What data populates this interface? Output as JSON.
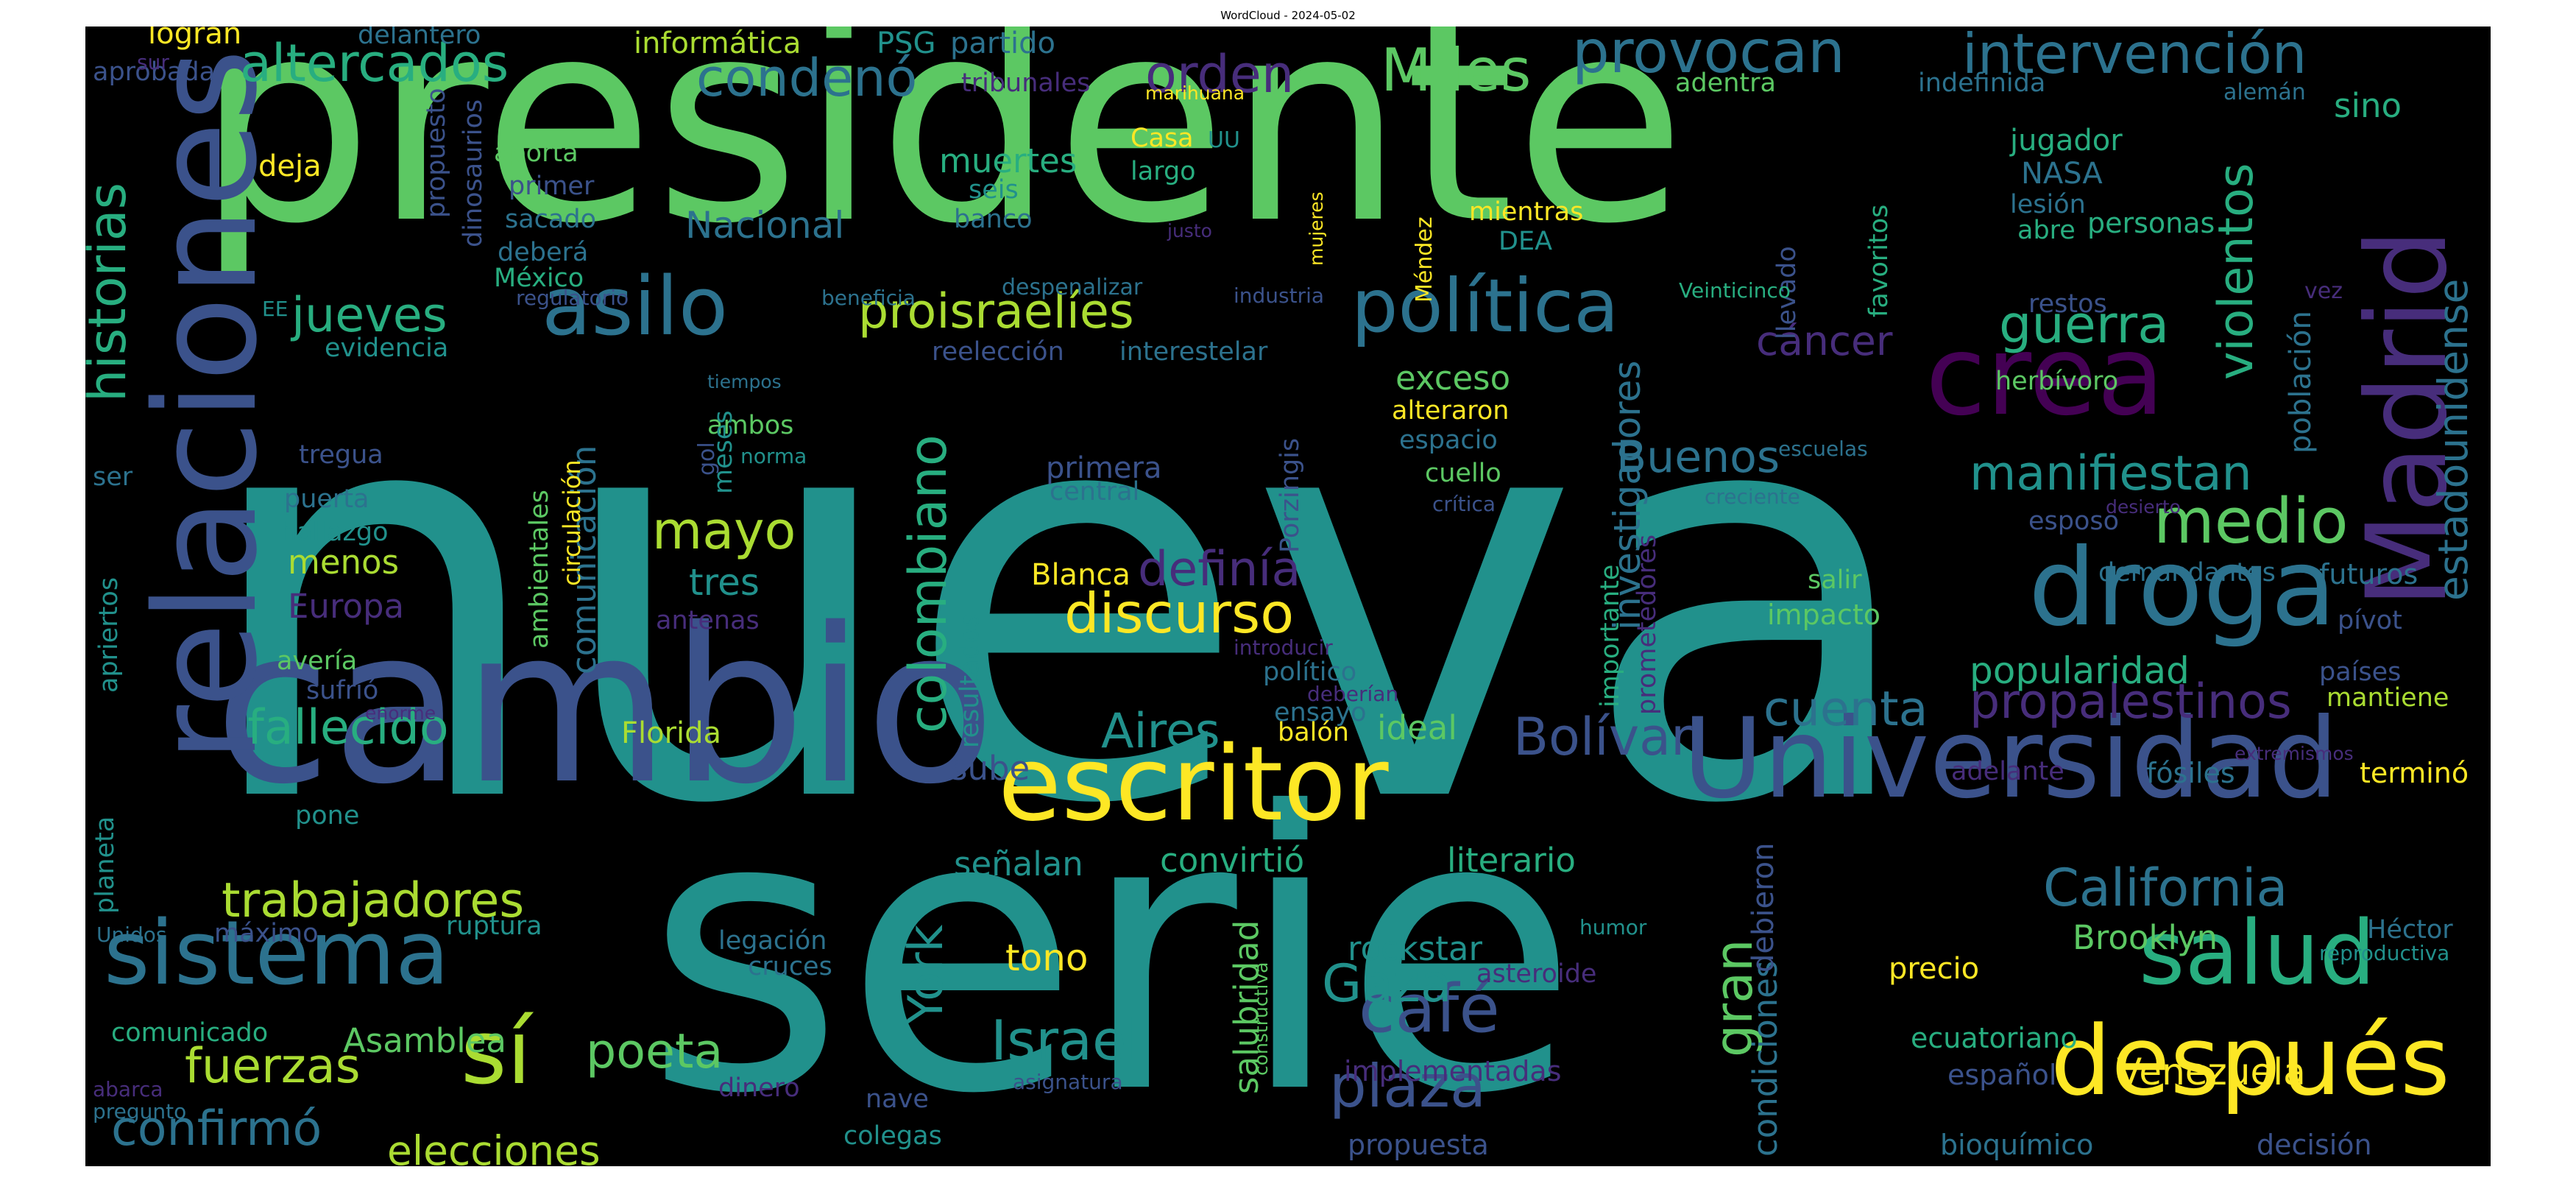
{
  "title": "WordCloud - 2024-05-02",
  "palette": {
    "background": "#000000",
    "c1": "#5cc863",
    "c2": "#21918c",
    "c3": "#3b528b",
    "c4": "#fde725",
    "c5": "#440154",
    "c6": "#2c728e",
    "c7": "#28ae80",
    "c8": "#aadc32",
    "c9": "#472d7b"
  },
  "words": [
    {
      "text": "nueva",
      "color": "#21918c"
    },
    {
      "text": "presidente",
      "color": "#5cc863"
    },
    {
      "text": "serie",
      "color": "#21918c"
    },
    {
      "text": "cambio",
      "color": "#3b528b"
    },
    {
      "text": "relaciones",
      "color": "#3b528b"
    },
    {
      "text": "Universidad",
      "color": "#3b528b"
    },
    {
      "text": "escritor",
      "color": "#fde725"
    },
    {
      "text": "Madrid",
      "color": "#472d7b"
    },
    {
      "text": "crea",
      "color": "#440154"
    },
    {
      "text": "droga",
      "color": "#2c728e"
    },
    {
      "text": "después",
      "color": "#fde725"
    },
    {
      "text": "salud",
      "color": "#28ae80"
    },
    {
      "text": "sistema",
      "color": "#2c728e"
    },
    {
      "text": "sí",
      "color": "#aadc32"
    },
    {
      "text": "asilo",
      "color": "#2c728e"
    },
    {
      "text": "política",
      "color": "#2c728e"
    },
    {
      "text": "medio",
      "color": "#5cc863"
    },
    {
      "text": "café",
      "color": "#3b528b"
    },
    {
      "text": "Israel",
      "color": "#21918c"
    },
    {
      "text": "plaza",
      "color": "#3b528b"
    },
    {
      "text": "Miles",
      "color": "#5cc863"
    },
    {
      "text": "provocan",
      "color": "#2c728e"
    },
    {
      "text": "intervención",
      "color": "#2c728e"
    },
    {
      "text": "altercados",
      "color": "#28ae80"
    },
    {
      "text": "condenó",
      "color": "#2c728e"
    },
    {
      "text": "orden",
      "color": "#472d7b"
    },
    {
      "text": "historias",
      "color": "#28ae80"
    },
    {
      "text": "jueves",
      "color": "#28ae80"
    },
    {
      "text": "proisraelíes",
      "color": "#aadc32"
    },
    {
      "text": "guerra",
      "color": "#28ae80"
    },
    {
      "text": "cáncer",
      "color": "#472d7b"
    },
    {
      "text": "violentos",
      "color": "#28ae80"
    },
    {
      "text": "estadounidense",
      "color": "#2c728e"
    },
    {
      "text": "manifiestan",
      "color": "#21918c"
    },
    {
      "text": "Buenos",
      "color": "#2c728e"
    },
    {
      "text": "colombiano",
      "color": "#28ae80"
    },
    {
      "text": "mayo",
      "color": "#aadc32"
    },
    {
      "text": "discurso",
      "color": "#fde725"
    },
    {
      "text": "definía",
      "color": "#472d7b"
    },
    {
      "text": "propalestinos",
      "color": "#472d7b"
    },
    {
      "text": "cuenta",
      "color": "#2c728e"
    },
    {
      "text": "Bolívar",
      "color": "#3b528b"
    },
    {
      "text": "fallecido",
      "color": "#28ae80"
    },
    {
      "text": "Aires",
      "color": "#21918c"
    },
    {
      "text": "trabajadores",
      "color": "#aadc32"
    },
    {
      "text": "California",
      "color": "#2c728e"
    },
    {
      "text": "fuerzas",
      "color": "#aadc32"
    },
    {
      "text": "poeta",
      "color": "#5cc863"
    },
    {
      "text": "confirmó",
      "color": "#2c728e"
    },
    {
      "text": "elecciones",
      "color": "#aadc32"
    },
    {
      "text": "Gaza",
      "color": "#21918c"
    },
    {
      "text": "York",
      "color": "#21918c"
    },
    {
      "text": "gran",
      "color": "#5cc863"
    },
    {
      "text": "Venezuela",
      "color": "#fde725"
    },
    {
      "text": "Asamblea",
      "color": "#5cc863"
    },
    {
      "text": "Nacional",
      "color": "#2c728e"
    },
    {
      "text": "muertes",
      "color": "#28ae80"
    },
    {
      "text": "tres",
      "color": "#21918c"
    },
    {
      "text": "tono",
      "color": "#fde725"
    },
    {
      "text": "popularidad",
      "color": "#28ae80"
    },
    {
      "text": "investigadores",
      "color": "#2c728e"
    },
    {
      "text": "comunicación",
      "color": "#2c728e"
    },
    {
      "text": "señalan",
      "color": "#21918c"
    },
    {
      "text": "convirtió",
      "color": "#28ae80"
    },
    {
      "text": "literario",
      "color": "#28ae80"
    },
    {
      "text": "rockstar",
      "color": "#21918c"
    },
    {
      "text": "Brooklyn",
      "color": "#5cc863"
    },
    {
      "text": "salubridad",
      "color": "#5cc863"
    },
    {
      "text": "condiciones",
      "color": "#2c728e"
    },
    {
      "text": "debieron",
      "color": "#3b528b"
    },
    {
      "text": "Europa",
      "color": "#472d7b"
    },
    {
      "text": "menos",
      "color": "#aadc32"
    },
    {
      "text": "exceso",
      "color": "#5cc863"
    },
    {
      "text": "población",
      "color": "#2c728e"
    },
    {
      "text": "informática",
      "color": "#aadc32"
    },
    {
      "text": "PSG",
      "color": "#21918c"
    },
    {
      "text": "partido",
      "color": "#2c728e"
    },
    {
      "text": "delantero",
      "color": "#2c728e"
    },
    {
      "text": "logran",
      "color": "#fde725"
    },
    {
      "text": "aprobada",
      "color": "#3b528b"
    },
    {
      "text": "tribunales",
      "color": "#472d7b"
    },
    {
      "text": "marihuana",
      "color": "#fde725"
    },
    {
      "text": "adentra",
      "color": "#5cc863"
    },
    {
      "text": "indefinida",
      "color": "#2c728e"
    },
    {
      "text": "alemán",
      "color": "#2c728e"
    },
    {
      "text": "sino",
      "color": "#28ae80"
    },
    {
      "text": "aporta",
      "color": "#5cc863"
    },
    {
      "text": "primer",
      "color": "#3b528b"
    },
    {
      "text": "sacado",
      "color": "#2c728e"
    },
    {
      "text": "deberá",
      "color": "#2c728e"
    },
    {
      "text": "México",
      "color": "#28ae80"
    },
    {
      "text": "deja",
      "color": "#fde725"
    },
    {
      "text": "seis",
      "color": "#21918c"
    },
    {
      "text": "banco",
      "color": "#2c728e"
    },
    {
      "text": "largo",
      "color": "#28ae80"
    },
    {
      "text": "Casa",
      "color": "#fde725"
    },
    {
      "text": "UU",
      "color": "#21918c"
    },
    {
      "text": "jugador",
      "color": "#28ae80"
    },
    {
      "text": "NASA",
      "color": "#2c728e"
    },
    {
      "text": "lesión",
      "color": "#2c728e"
    },
    {
      "text": "abre",
      "color": "#28ae80"
    },
    {
      "text": "personas",
      "color": "#28ae80"
    },
    {
      "text": "mientras",
      "color": "#fde725"
    },
    {
      "text": "DEA",
      "color": "#21918c"
    },
    {
      "text": "favoritos",
      "color": "#28ae80"
    },
    {
      "text": "llevado",
      "color": "#3b528b"
    },
    {
      "text": "restos",
      "color": "#3b528b"
    },
    {
      "text": "vez",
      "color": "#472d7b"
    },
    {
      "text": "herbívoro",
      "color": "#5cc863"
    },
    {
      "text": "Méndez",
      "color": "#fde725"
    },
    {
      "text": "mujeres",
      "color": "#fde725"
    },
    {
      "text": "justo",
      "color": "#472d7b"
    },
    {
      "text": "despenalizar",
      "color": "#2c728e"
    },
    {
      "text": "industria",
      "color": "#3b528b"
    },
    {
      "text": "beneficia",
      "color": "#2c728e"
    },
    {
      "text": "regulatorio",
      "color": "#3b528b"
    },
    {
      "text": "EE",
      "color": "#21918c"
    },
    {
      "text": "evidencia",
      "color": "#21918c"
    },
    {
      "text": "reelección",
      "color": "#3b528b"
    },
    {
      "text": "interestelar",
      "color": "#2c728e"
    },
    {
      "text": "Veinticinco",
      "color": "#28ae80"
    },
    {
      "text": "tiempos",
      "color": "#2c728e"
    },
    {
      "text": "circulación",
      "color": "#fde725"
    },
    {
      "text": "ambos",
      "color": "#5cc863"
    },
    {
      "text": "meses",
      "color": "#21918c"
    },
    {
      "text": "gol",
      "color": "#3b528b"
    },
    {
      "text": "norma",
      "color": "#21918c"
    },
    {
      "text": "tregua",
      "color": "#3b528b"
    },
    {
      "text": "ser",
      "color": "#2c728e"
    },
    {
      "text": "puerta",
      "color": "#2c728e"
    },
    {
      "text": "hallazgo",
      "color": "#21918c"
    },
    {
      "text": "ambientales",
      "color": "#5cc863"
    },
    {
      "text": "primera",
      "color": "#3b528b"
    },
    {
      "text": "central",
      "color": "#2c728e"
    },
    {
      "text": "Porzingis",
      "color": "#3b528b"
    },
    {
      "text": "alteraron",
      "color": "#fde725"
    },
    {
      "text": "espacio",
      "color": "#2c728e"
    },
    {
      "text": "cuello",
      "color": "#5cc863"
    },
    {
      "text": "crítica",
      "color": "#3b528b"
    },
    {
      "text": "escuelas",
      "color": "#2c728e"
    },
    {
      "text": "creciente",
      "color": "#2c728e"
    },
    {
      "text": "desierto",
      "color": "#472d7b"
    },
    {
      "text": "esposo",
      "color": "#3b528b"
    },
    {
      "text": "importante",
      "color": "#28ae80"
    },
    {
      "text": "prometedores",
      "color": "#472d7b"
    },
    {
      "text": "Blanca",
      "color": "#fde725"
    },
    {
      "text": "salir",
      "color": "#5cc863"
    },
    {
      "text": "impacto",
      "color": "#5cc863"
    },
    {
      "text": "demandantes",
      "color": "#2c728e"
    },
    {
      "text": "futuros",
      "color": "#2c728e"
    },
    {
      "text": "pívot",
      "color": "#3b528b"
    },
    {
      "text": "países",
      "color": "#3b528b"
    },
    {
      "text": "mantiene",
      "color": "#aadc32"
    },
    {
      "text": "apriertos",
      "color": "#21918c"
    },
    {
      "text": "avería",
      "color": "#5cc863"
    },
    {
      "text": "sufrió",
      "color": "#3b528b"
    },
    {
      "text": "antenas",
      "color": "#472d7b"
    },
    {
      "text": "introducir",
      "color": "#472d7b"
    },
    {
      "text": "político",
      "color": "#2c728e"
    },
    {
      "text": "deberían",
      "color": "#472d7b"
    },
    {
      "text": "ensayo",
      "color": "#2c728e"
    },
    {
      "text": "resultados",
      "color": "#21918c"
    },
    {
      "text": "enorme",
      "color": "#472d7b"
    },
    {
      "text": "Florida",
      "color": "#aadc32"
    },
    {
      "text": "balón",
      "color": "#fde725"
    },
    {
      "text": "ideal",
      "color": "#5cc863"
    },
    {
      "text": "sube",
      "color": "#3b528b"
    },
    {
      "text": "adelante",
      "color": "#472d7b"
    },
    {
      "text": "fósiles",
      "color": "#2c728e"
    },
    {
      "text": "extremismos",
      "color": "#472d7b"
    },
    {
      "text": "terminó",
      "color": "#fde725"
    },
    {
      "text": "planeta",
      "color": "#21918c"
    },
    {
      "text": "pone",
      "color": "#21918c"
    },
    {
      "text": "Unidos",
      "color": "#2c728e"
    },
    {
      "text": "máximo",
      "color": "#3b528b"
    },
    {
      "text": "ruptura",
      "color": "#21918c"
    },
    {
      "text": "comunicado",
      "color": "#28ae80"
    },
    {
      "text": "legación",
      "color": "#2c728e"
    },
    {
      "text": "cruces",
      "color": "#2c728e"
    },
    {
      "text": "constructiva",
      "color": "#5cc863"
    },
    {
      "text": "humor",
      "color": "#21918c"
    },
    {
      "text": "asteroide",
      "color": "#472d7b"
    },
    {
      "text": "precio",
      "color": "#fde725"
    },
    {
      "text": "Héctor",
      "color": "#2c728e"
    },
    {
      "text": "reproductiva",
      "color": "#21918c"
    },
    {
      "text": "ecuatoriano",
      "color": "#28ae80"
    },
    {
      "text": "español",
      "color": "#3b528b"
    },
    {
      "text": "implementadas",
      "color": "#472d7b"
    },
    {
      "text": "propuesta",
      "color": "#3b528b"
    },
    {
      "text": "bioquímico",
      "color": "#2c728e"
    },
    {
      "text": "decisión",
      "color": "#3b528b"
    },
    {
      "text": "dinero",
      "color": "#472d7b"
    },
    {
      "text": "nave",
      "color": "#3b528b"
    },
    {
      "text": "colegas",
      "color": "#21918c"
    },
    {
      "text": "asignatura",
      "color": "#3b528b"
    },
    {
      "text": "abarca",
      "color": "#472d7b"
    },
    {
      "text": "pregunto",
      "color": "#2c728e"
    },
    {
      "text": "sur",
      "color": "#472d7b"
    },
    {
      "text": "propuesto",
      "color": "#3b528b"
    },
    {
      "text": "dinosaurios",
      "color": "#3b528b"
    }
  ]
}
